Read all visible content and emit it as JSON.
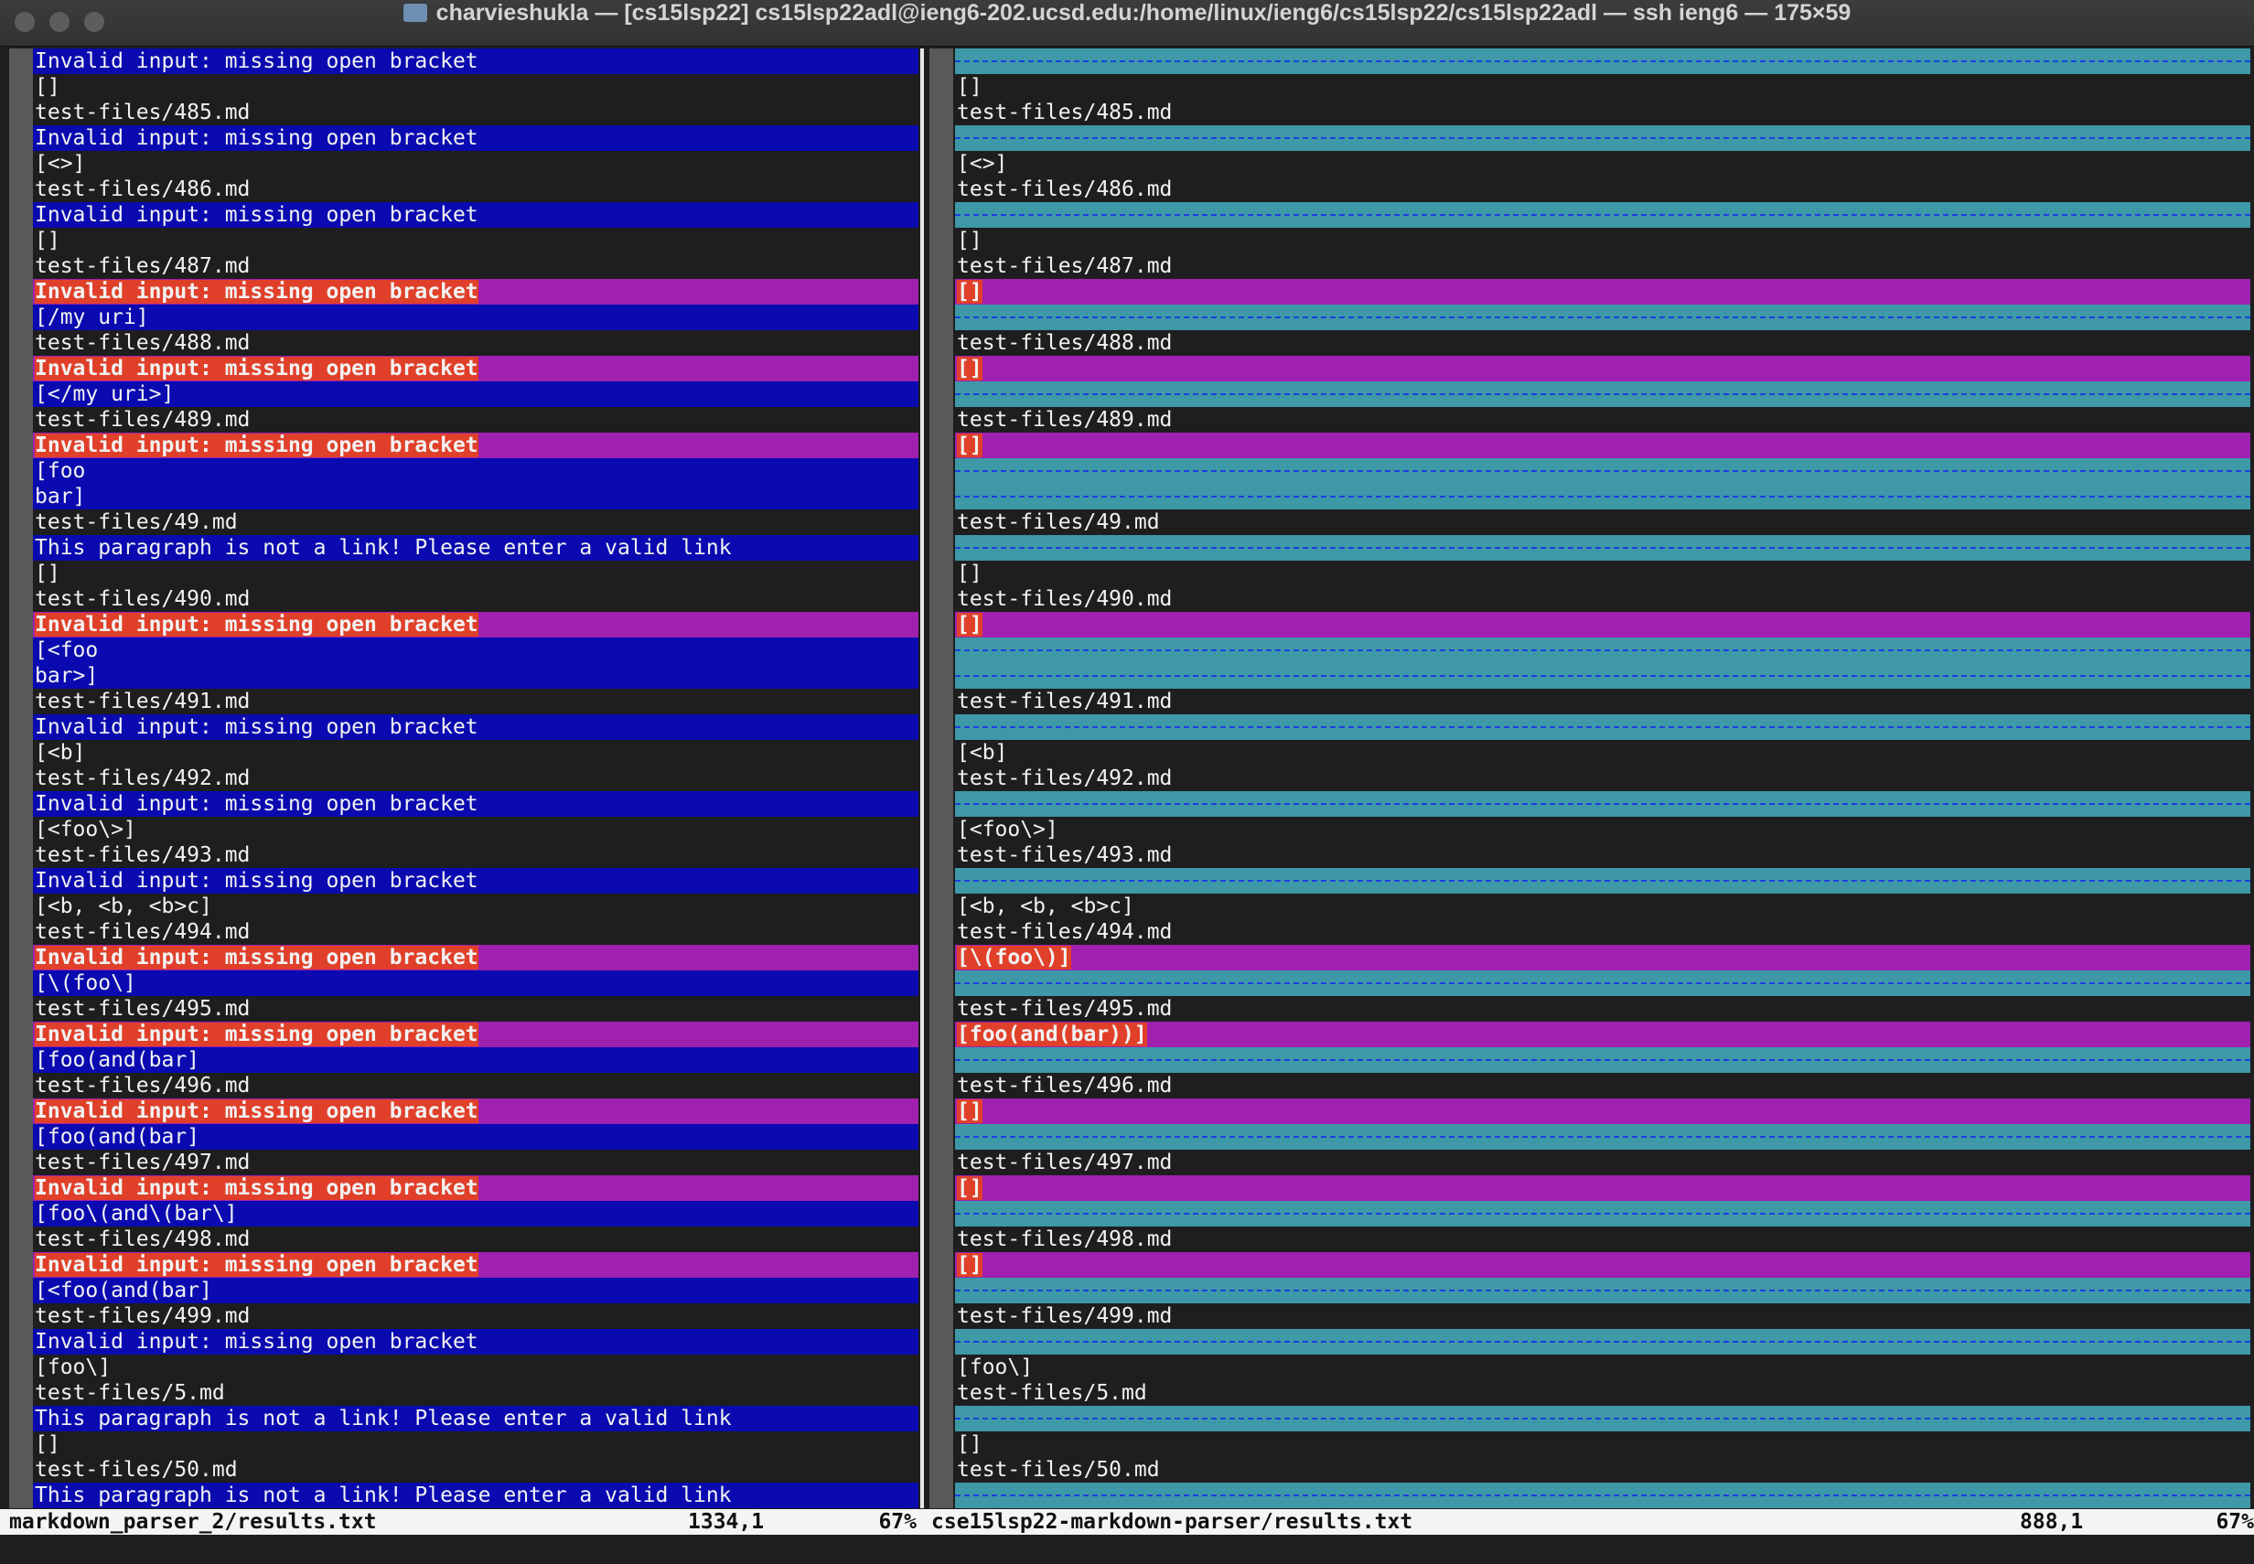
{
  "window": {
    "title": "charvieshukla — [cs15lsp22]  cs15lsp22adl@ieng6-202.ucsd.edu:/home/linux/ieng6/cs15lsp22/cs15lsp22adl — ssh ieng6 — 175×59"
  },
  "rows": [
    {
      "left": "Invalid input: missing open bracket",
      "right": null,
      "diff": "add"
    },
    {
      "left": "[]",
      "right": "[]",
      "diff": "same"
    },
    {
      "left": "test-files/485.md",
      "right": "test-files/485.md",
      "diff": "same"
    },
    {
      "left": "Invalid input: missing open bracket",
      "right": null,
      "diff": "add"
    },
    {
      "left": "[<>]",
      "right": "[<>]",
      "diff": "same"
    },
    {
      "left": "test-files/486.md",
      "right": "test-files/486.md",
      "diff": "same"
    },
    {
      "left": "Invalid input: missing open bracket",
      "right": null,
      "diff": "add"
    },
    {
      "left": "[]",
      "right": "[]",
      "diff": "same"
    },
    {
      "left": "test-files/487.md",
      "right": "test-files/487.md",
      "diff": "same"
    },
    {
      "left": "Invalid input: missing open bracket",
      "right": "[]",
      "diff": "change"
    },
    {
      "left": "[/my uri]",
      "right": null,
      "diff": "add"
    },
    {
      "left": "test-files/488.md",
      "right": "test-files/488.md",
      "diff": "same"
    },
    {
      "left": "Invalid input: missing open bracket",
      "right": "[]",
      "diff": "change"
    },
    {
      "left": "[</my uri>]",
      "right": null,
      "diff": "add"
    },
    {
      "left": "test-files/489.md",
      "right": "test-files/489.md",
      "diff": "same"
    },
    {
      "left": "Invalid input: missing open bracket",
      "right": "[]",
      "diff": "change"
    },
    {
      "left": "[foo",
      "right": null,
      "diff": "add"
    },
    {
      "left": "bar]",
      "right": null,
      "diff": "add"
    },
    {
      "left": "test-files/49.md",
      "right": "test-files/49.md",
      "diff": "same"
    },
    {
      "left": "This paragraph is not a link! Please enter a valid link",
      "right": null,
      "diff": "add"
    },
    {
      "left": "[]",
      "right": "[]",
      "diff": "same"
    },
    {
      "left": "test-files/490.md",
      "right": "test-files/490.md",
      "diff": "same"
    },
    {
      "left": "Invalid input: missing open bracket",
      "right": "[]",
      "diff": "change"
    },
    {
      "left": "[<foo",
      "right": null,
      "diff": "add"
    },
    {
      "left": "bar>]",
      "right": null,
      "diff": "add"
    },
    {
      "left": "test-files/491.md",
      "right": "test-files/491.md",
      "diff": "same"
    },
    {
      "left": "Invalid input: missing open bracket",
      "right": null,
      "diff": "add"
    },
    {
      "left": "[<b]",
      "right": "[<b]",
      "diff": "same"
    },
    {
      "left": "test-files/492.md",
      "right": "test-files/492.md",
      "diff": "same"
    },
    {
      "left": "Invalid input: missing open bracket",
      "right": null,
      "diff": "add"
    },
    {
      "left": "[<foo\\>]",
      "right": "[<foo\\>]",
      "diff": "same"
    },
    {
      "left": "test-files/493.md",
      "right": "test-files/493.md",
      "diff": "same"
    },
    {
      "left": "Invalid input: missing open bracket",
      "right": null,
      "diff": "add"
    },
    {
      "left": "[<b, <b, <b>c]",
      "right": "[<b, <b, <b>c]",
      "diff": "same"
    },
    {
      "left": "test-files/494.md",
      "right": "test-files/494.md",
      "diff": "same"
    },
    {
      "left": "Invalid input: missing open bracket",
      "right": "[\\(foo\\)]",
      "diff": "change"
    },
    {
      "left": "[\\(foo\\]",
      "right": null,
      "diff": "add"
    },
    {
      "left": "test-files/495.md",
      "right": "test-files/495.md",
      "diff": "same"
    },
    {
      "left": "Invalid input: missing open bracket",
      "right": "[foo(and(bar))]",
      "diff": "change"
    },
    {
      "left": "[foo(and(bar]",
      "right": null,
      "diff": "add"
    },
    {
      "left": "test-files/496.md",
      "right": "test-files/496.md",
      "diff": "same"
    },
    {
      "left": "Invalid input: missing open bracket",
      "right": "[]",
      "diff": "change"
    },
    {
      "left": "[foo(and(bar]",
      "right": null,
      "diff": "add"
    },
    {
      "left": "test-files/497.md",
      "right": "test-files/497.md",
      "diff": "same"
    },
    {
      "left": "Invalid input: missing open bracket",
      "right": "[]",
      "diff": "change"
    },
    {
      "left": "[foo\\(and\\(bar\\]",
      "right": null,
      "diff": "add"
    },
    {
      "left": "test-files/498.md",
      "right": "test-files/498.md",
      "diff": "same"
    },
    {
      "left": "Invalid input: missing open bracket",
      "right": "[]",
      "diff": "change"
    },
    {
      "left": "[<foo(and(bar]",
      "right": null,
      "diff": "add"
    },
    {
      "left": "test-files/499.md",
      "right": "test-files/499.md",
      "diff": "same"
    },
    {
      "left": "Invalid input: missing open bracket",
      "right": null,
      "diff": "add"
    },
    {
      "left": "[foo\\]",
      "right": "[foo\\]",
      "diff": "same"
    },
    {
      "left": "test-files/5.md",
      "right": "test-files/5.md",
      "diff": "same"
    },
    {
      "left": "This paragraph is not a link! Please enter a valid link",
      "right": null,
      "diff": "add"
    },
    {
      "left": "[]",
      "right": "[]",
      "diff": "same"
    },
    {
      "left": "test-files/50.md",
      "right": "test-files/50.md",
      "diff": "same"
    },
    {
      "left": "This paragraph is not a link! Please enter a valid link",
      "right": null,
      "diff": "add"
    }
  ],
  "status": {
    "left": {
      "file": "markdown_parser_2/results.txt",
      "position": "1334,1",
      "percent": "67%"
    },
    "right": {
      "file": "cse15lsp22-markdown-parser/results.txt",
      "position": "888,1",
      "percent": "67%"
    }
  }
}
